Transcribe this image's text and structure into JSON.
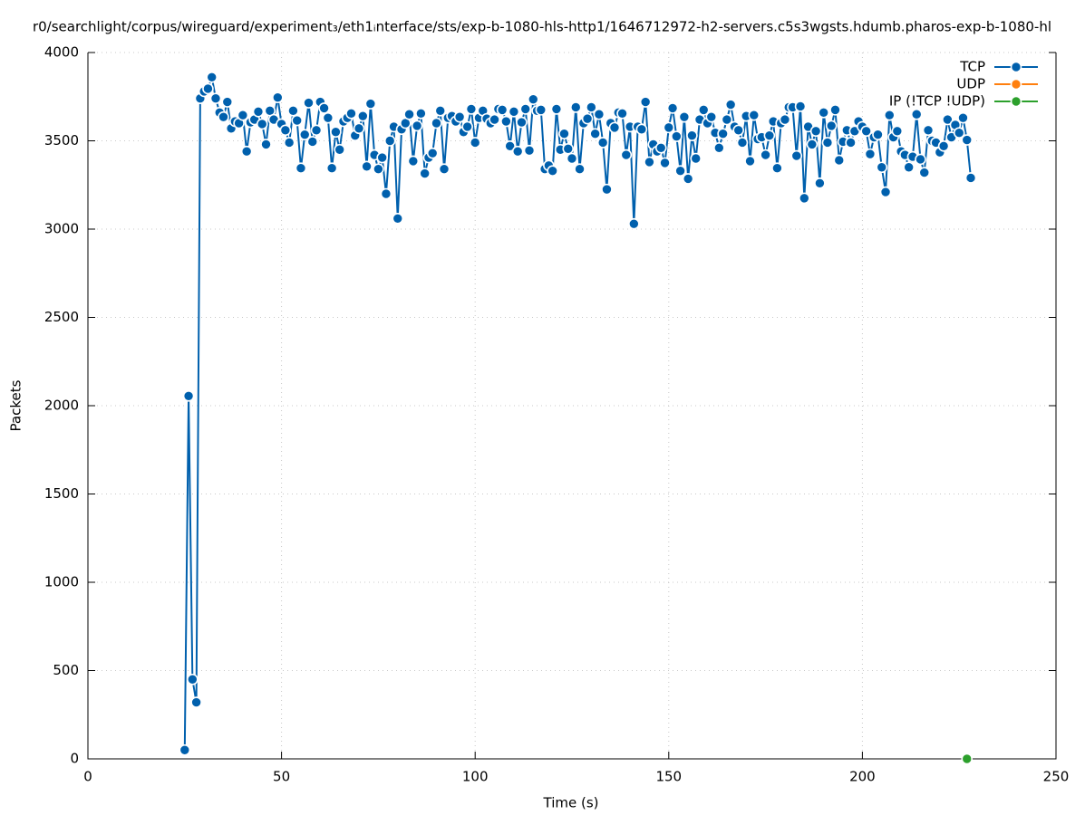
{
  "chart_data": {
    "type": "line",
    "title": "r0/searchlight/corpus/wireguard/experiment₃/eth1ᵢnterface/sts/exp-b-1080-hls-http1/1646712972-h2-servers.c5s3wgsts.hdumb.pharos-exp-b-1080-hl",
    "xlabel": "Time (s)",
    "ylabel": "Packets",
    "xlim": [
      0,
      250
    ],
    "ylim": [
      0,
      4000
    ],
    "xticks": [
      0,
      50,
      100,
      150,
      200,
      250
    ],
    "yticks": [
      0,
      500,
      1000,
      1500,
      2000,
      2500,
      3000,
      3500,
      4000
    ],
    "grid": true,
    "legend": "top-right",
    "series": [
      {
        "name": "TCP",
        "color": "#0060ad",
        "x": [
          25,
          26,
          27,
          28,
          29,
          30,
          31,
          32,
          33,
          34,
          35,
          36,
          37,
          38,
          39,
          40,
          41,
          42,
          43,
          44,
          45,
          46,
          47,
          48,
          49,
          50,
          51,
          52,
          53,
          54,
          55,
          56,
          57,
          58,
          59,
          60,
          61,
          62,
          63,
          64,
          65,
          66,
          67,
          68,
          69,
          70,
          71,
          72,
          73,
          74,
          75,
          76,
          77,
          78,
          79,
          80,
          81,
          82,
          83,
          84,
          85,
          86,
          87,
          88,
          89,
          90,
          91,
          92,
          93,
          94,
          95,
          96,
          97,
          98,
          99,
          100,
          101,
          102,
          103,
          104,
          105,
          106,
          107,
          108,
          109,
          110,
          111,
          112,
          113,
          114,
          115,
          116,
          117,
          118,
          119,
          120,
          121,
          122,
          123,
          124,
          125,
          126,
          127,
          128,
          129,
          130,
          131,
          132,
          133,
          134,
          135,
          136,
          137,
          138,
          139,
          140,
          141,
          142,
          143,
          144,
          145,
          146,
          147,
          148,
          149,
          150,
          151,
          152,
          153,
          154,
          155,
          156,
          157,
          158,
          159,
          160,
          161,
          162,
          163,
          164,
          165,
          166,
          167,
          168,
          169,
          170,
          171,
          172,
          173,
          174,
          175,
          176,
          177,
          178,
          179,
          180,
          181,
          182,
          183,
          184,
          185,
          186,
          187,
          188,
          189,
          190,
          191,
          192,
          193,
          194,
          195,
          196,
          197,
          198,
          199,
          200,
          201,
          202,
          203,
          204,
          205,
          206,
          207,
          208,
          209,
          210,
          211,
          212,
          213,
          214,
          215,
          216,
          217,
          218,
          219,
          220,
          221,
          222,
          223,
          224,
          225,
          226,
          227,
          228
        ],
        "values": [
          50,
          2055,
          450,
          320,
          3740,
          3780,
          3795,
          3860,
          3740,
          3660,
          3635,
          3720,
          3570,
          3610,
          3600,
          3645,
          3440,
          3605,
          3620,
          3665,
          3595,
          3480,
          3670,
          3620,
          3745,
          3595,
          3560,
          3490,
          3670,
          3615,
          3345,
          3535,
          3715,
          3495,
          3560,
          3720,
          3685,
          3630,
          3345,
          3550,
          3450,
          3610,
          3630,
          3655,
          3530,
          3570,
          3640,
          3355,
          3710,
          3420,
          3340,
          3405,
          3200,
          3500,
          3580,
          3060,
          3565,
          3600,
          3650,
          3385,
          3585,
          3655,
          3315,
          3405,
          3430,
          3600,
          3670,
          3340,
          3630,
          3640,
          3610,
          3635,
          3550,
          3580,
          3680,
          3490,
          3630,
          3670,
          3625,
          3600,
          3620,
          3680,
          3675,
          3610,
          3470,
          3665,
          3440,
          3605,
          3680,
          3445,
          3735,
          3670,
          3675,
          3340,
          3360,
          3330,
          3680,
          3450,
          3540,
          3455,
          3400,
          3690,
          3340,
          3600,
          3625,
          3690,
          3540,
          3650,
          3490,
          3225,
          3600,
          3575,
          3660,
          3655,
          3420,
          3580,
          3030,
          3580,
          3565,
          3720,
          3380,
          3480,
          3440,
          3460,
          3375,
          3575,
          3685,
          3525,
          3330,
          3635,
          3285,
          3530,
          3400,
          3620,
          3675,
          3600,
          3635,
          3545,
          3460,
          3540,
          3620,
          3705,
          3580,
          3560,
          3490,
          3640,
          3385,
          3645,
          3510,
          3520,
          3420,
          3530,
          3610,
          3345,
          3600,
          3620,
          3690,
          3690,
          3415,
          3695,
          3175,
          3580,
          3480,
          3555,
          3260,
          3660,
          3490,
          3585,
          3675,
          3390,
          3495,
          3560,
          3490,
          3555,
          3610,
          3580,
          3555,
          3425,
          3520,
          3535,
          3350,
          3210,
          3645,
          3520,
          3555,
          3440,
          3420,
          3350,
          3410,
          3650,
          3395,
          3320,
          3560,
          3500,
          3490,
          3435,
          3470,
          3620,
          3520,
          3590,
          3545,
          3630,
          3505,
          3290
        ]
      },
      {
        "name": "UDP",
        "color": "#ff7f0e",
        "x": [],
        "values": []
      },
      {
        "name": "IP (!TCP  !UDP)",
        "color": "#2ca02c",
        "x": [
          227
        ],
        "values": [
          0
        ]
      }
    ]
  }
}
